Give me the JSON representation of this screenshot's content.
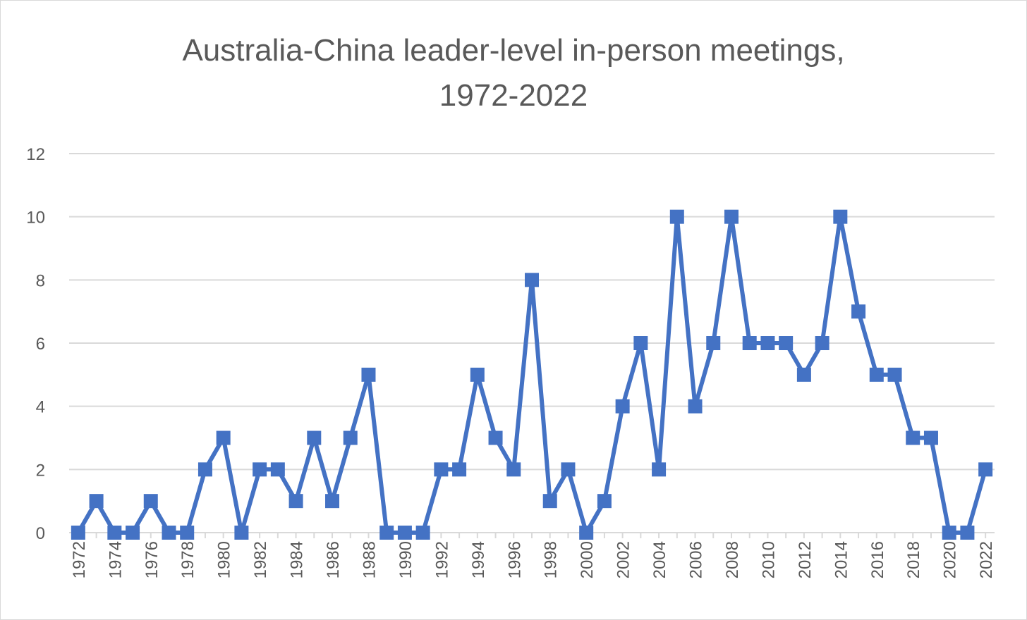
{
  "chart_data": {
    "type": "line",
    "title_line1": "Australia-China leader-level in-person meetings,",
    "title_line2": "1972-2022",
    "xlabel": "",
    "ylabel": "",
    "x": [
      1972,
      1973,
      1974,
      1975,
      1976,
      1977,
      1978,
      1979,
      1980,
      1981,
      1982,
      1983,
      1984,
      1985,
      1986,
      1987,
      1988,
      1989,
      1990,
      1991,
      1992,
      1993,
      1994,
      1995,
      1996,
      1997,
      1998,
      1999,
      2000,
      2001,
      2002,
      2003,
      2004,
      2005,
      2006,
      2007,
      2008,
      2009,
      2010,
      2011,
      2012,
      2013,
      2014,
      2015,
      2016,
      2017,
      2018,
      2019,
      2020,
      2021,
      2022
    ],
    "x_tick_labels": [
      "1972",
      "1974",
      "1976",
      "1978",
      "1980",
      "1982",
      "1984",
      "1986",
      "1988",
      "1990",
      "1992",
      "1994",
      "1996",
      "1998",
      "2000",
      "2002",
      "2004",
      "2006",
      "2008",
      "2010",
      "2012",
      "2014",
      "2016",
      "2018",
      "2020",
      "2022"
    ],
    "series": [
      {
        "values": [
          0,
          1,
          0,
          0,
          1,
          0,
          0,
          2,
          3,
          0,
          2,
          2,
          1,
          3,
          1,
          3,
          5,
          0,
          0,
          0,
          2,
          2,
          5,
          3,
          2,
          8,
          1,
          2,
          0,
          1,
          4,
          6,
          2,
          10,
          4,
          6,
          10,
          6,
          6,
          6,
          5,
          6,
          10,
          7,
          5,
          5,
          3,
          3,
          0,
          0,
          2
        ],
        "color": "#4472c4",
        "marker": "square"
      }
    ],
    "ylim": [
      0,
      12
    ],
    "y_ticks": [
      0,
      2,
      4,
      6,
      8,
      10,
      12
    ],
    "grid": true,
    "legend": "none"
  }
}
